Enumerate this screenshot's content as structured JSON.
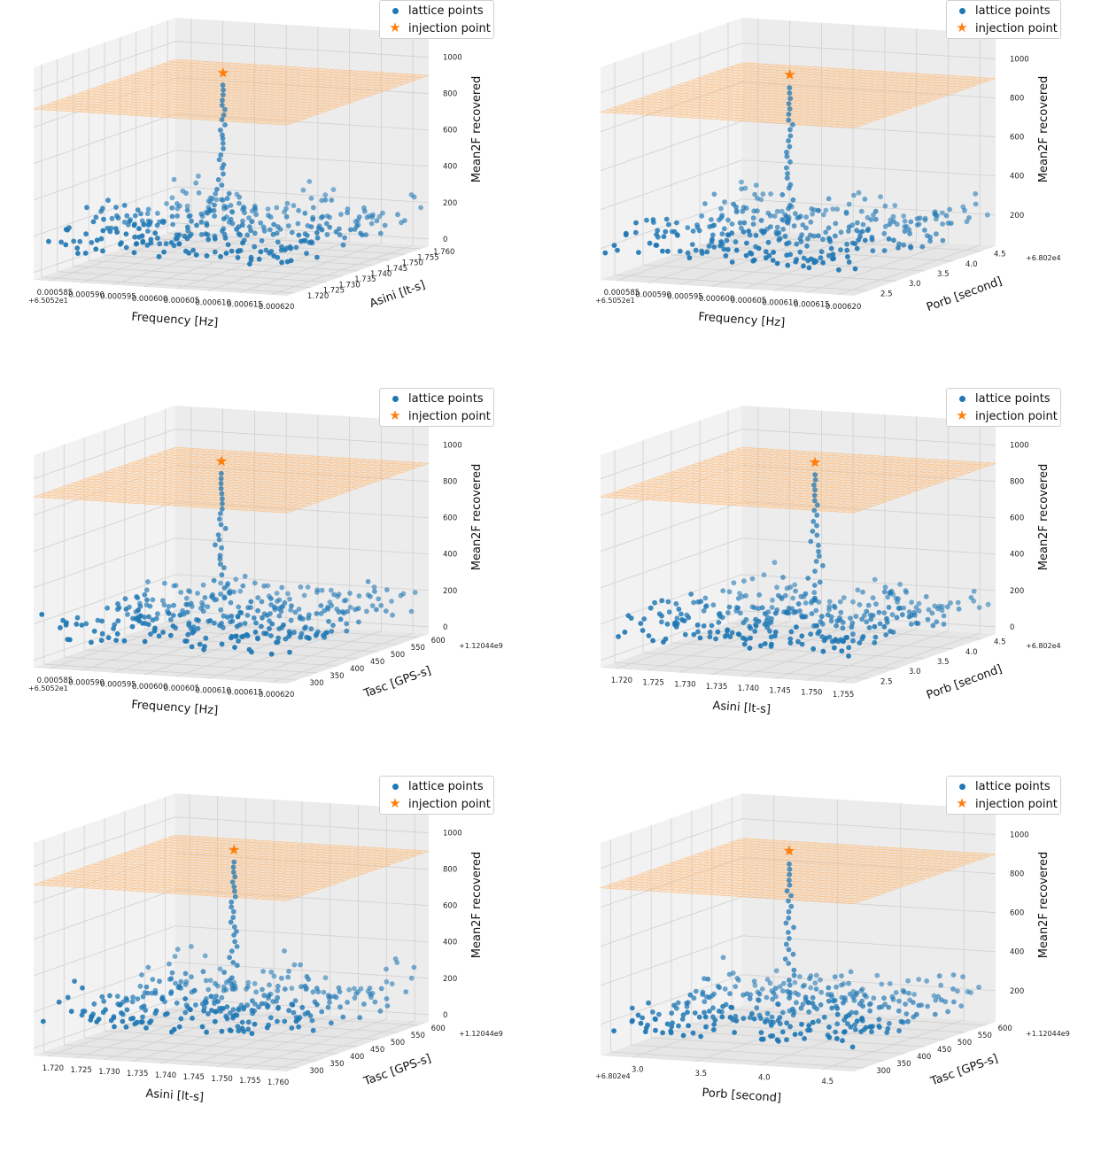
{
  "legend": {
    "lattice": "lattice points",
    "injection": "injection point"
  },
  "colors": {
    "lattice": "#1f77b4",
    "injection": "#ff7f0e",
    "plane": "#ffbb78",
    "pane": "#f2f2f2",
    "grid": "#d0d0d0"
  },
  "chart_data": [
    {
      "type": "scatter3d",
      "x": {
        "label": "Frequency [Hz]",
        "ticks": [
          "0.000585",
          "0.000590",
          "0.000595",
          "0.000600",
          "0.000605",
          "0.000610",
          "0.000615",
          "0.000620"
        ],
        "offset": "+6.5052e1",
        "range": [
          0.000583,
          0.000622
        ]
      },
      "y": {
        "label": "Asini [lt-s]",
        "ticks": [
          "1.720",
          "1.725",
          "1.730",
          "1.735",
          "1.740",
          "1.745",
          "1.750",
          "1.755",
          "1.760"
        ],
        "offset": "",
        "range": [
          1.717,
          1.762
        ]
      },
      "z": {
        "label": "Mean2F recovered",
        "ticks": [
          "0",
          "200",
          "400",
          "600",
          "800",
          "1000"
        ],
        "range": [
          -40,
          1130
        ]
      },
      "lattice_z_range": [
        0,
        420
      ],
      "injection": {
        "x": 0.000601,
        "y": 1.74,
        "z": 1000
      },
      "threshold_plane_z": 900
    },
    {
      "type": "scatter3d",
      "x": {
        "label": "Frequency [Hz]",
        "ticks": [
          "0.000585",
          "0.000590",
          "0.000595",
          "0.000600",
          "0.000605",
          "0.000610",
          "0.000615",
          "0.000620"
        ],
        "offset": "+6.5052e1",
        "range": [
          0.000583,
          0.000622
        ]
      },
      "y": {
        "label": "Porb [second]",
        "ticks": [
          "2.5",
          "3.0",
          "3.5",
          "4.0",
          "4.5"
        ],
        "offset": "+6.802e4",
        "range": [
          2.3,
          4.85
        ]
      },
      "z": {
        "label": "Mean2F recovered",
        "ticks": [
          "200",
          "400",
          "600",
          "800",
          "1000"
        ],
        "range": [
          40,
          1130
        ]
      },
      "lattice_z_range": [
        60,
        420
      ],
      "injection": {
        "x": 0.000601,
        "y": 3.6,
        "z": 1000
      },
      "threshold_plane_z": 900
    },
    {
      "type": "scatter3d",
      "x": {
        "label": "Frequency [Hz]",
        "ticks": [
          "0.000585",
          "0.000590",
          "0.000595",
          "0.000600",
          "0.000605",
          "0.000610",
          "0.000615",
          "0.000620"
        ],
        "offset": "+6.5052e1",
        "range": [
          0.000583,
          0.000622
        ]
      },
      "y": {
        "label": "Tasc [GPS-s]",
        "ticks": [
          "300",
          "350",
          "400",
          "450",
          "500",
          "550",
          "600"
        ],
        "offset": "+1.12044e9",
        "range": [
          285,
          615
        ]
      },
      "z": {
        "label": "Mean2F recovered",
        "ticks": [
          "0",
          "200",
          "400",
          "600",
          "800",
          "1000"
        ],
        "range": [
          -40,
          1130
        ]
      },
      "lattice_z_range": [
        0,
        400
      ],
      "injection": {
        "x": 0.000601,
        "y": 450,
        "z": 1000
      },
      "threshold_plane_z": 900
    },
    {
      "type": "scatter3d",
      "x": {
        "label": "Asini [lt-s]",
        "ticks": [
          "1.720",
          "1.725",
          "1.730",
          "1.735",
          "1.740",
          "1.745",
          "1.750",
          "1.755"
        ],
        "offset": "",
        "range": [
          1.717,
          1.758
        ]
      },
      "y": {
        "label": "Porb [second]",
        "ticks": [
          "2.5",
          "3.0",
          "3.5",
          "4.0",
          "4.5"
        ],
        "offset": "+6.802e4",
        "range": [
          2.3,
          4.85
        ]
      },
      "z": {
        "label": "Mean2F recovered",
        "ticks": [
          "0",
          "200",
          "400",
          "600",
          "800",
          "1000"
        ],
        "range": [
          -40,
          1130
        ]
      },
      "lattice_z_range": [
        0,
        380
      ],
      "injection": {
        "x": 1.74,
        "y": 3.6,
        "z": 1000
      },
      "threshold_plane_z": 900
    },
    {
      "type": "scatter3d",
      "x": {
        "label": "Asini [lt-s]",
        "ticks": [
          "1.720",
          "1.725",
          "1.730",
          "1.735",
          "1.740",
          "1.745",
          "1.750",
          "1.755",
          "1.760"
        ],
        "offset": "",
        "range": [
          1.717,
          1.762
        ]
      },
      "y": {
        "label": "Tasc [GPS-s]",
        "ticks": [
          "300",
          "350",
          "400",
          "450",
          "500",
          "550",
          "600"
        ],
        "offset": "+1.12044e9",
        "range": [
          285,
          615
        ]
      },
      "z": {
        "label": "Mean2F recovered",
        "ticks": [
          "0",
          "200",
          "400",
          "600",
          "800",
          "1000"
        ],
        "range": [
          -40,
          1130
        ]
      },
      "lattice_z_range": [
        0,
        420
      ],
      "injection": {
        "x": 1.74,
        "y": 450,
        "z": 1000
      },
      "threshold_plane_z": 900
    },
    {
      "type": "scatter3d",
      "x": {
        "label": "Porb [second]",
        "ticks": [
          "3.0",
          "3.5",
          "4.0",
          "4.5"
        ],
        "offset": "+6.802e4",
        "range": [
          2.6,
          4.75
        ]
      },
      "y": {
        "label": "Tasc [GPS-s]",
        "ticks": [
          "300",
          "350",
          "400",
          "450",
          "500",
          "550",
          "600"
        ],
        "offset": "+1.12044e9",
        "range": [
          285,
          615
        ]
      },
      "z": {
        "label": "Mean2F recovered",
        "ticks": [
          "200",
          "400",
          "600",
          "800",
          "1000"
        ],
        "range": [
          40,
          1130
        ]
      },
      "lattice_z_range": [
        60,
        420
      ],
      "injection": {
        "x": 3.6,
        "y": 450,
        "z": 1000
      },
      "threshold_plane_z": 900
    }
  ]
}
